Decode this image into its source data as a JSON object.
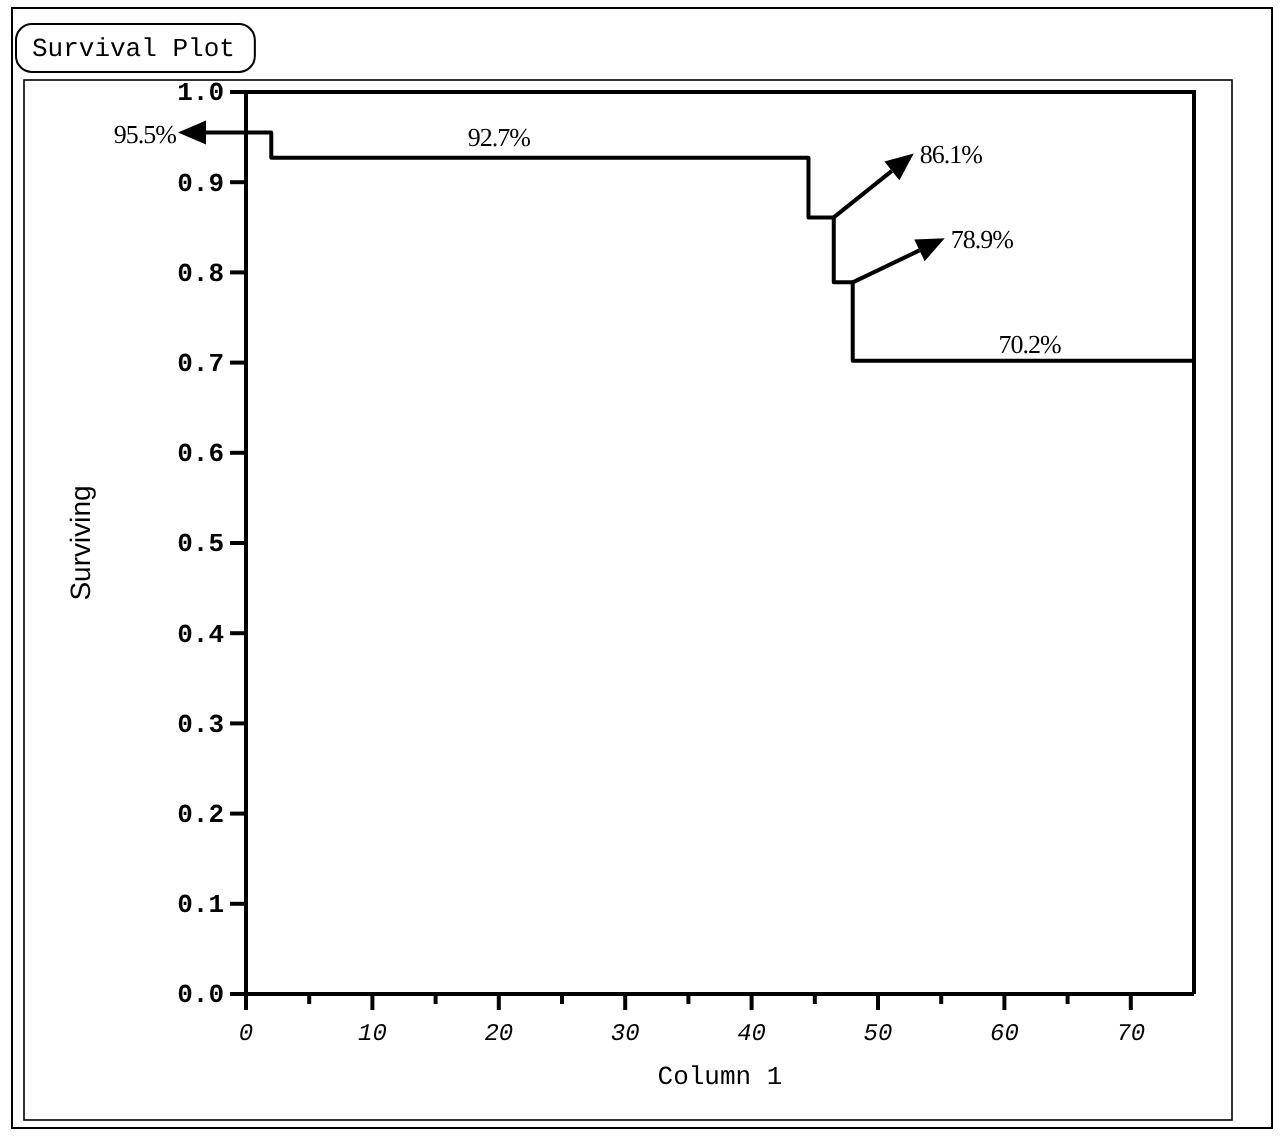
{
  "chart_data": {
    "type": "step",
    "title": "Survival Plot",
    "xlabel": "Column 1",
    "ylabel": "Surviving",
    "x": [
      0,
      2,
      44.5,
      46.5,
      48,
      75
    ],
    "values": [
      0.955,
      0.927,
      0.861,
      0.789,
      0.702,
      0.702
    ],
    "color": "#000000",
    "xlim": [
      0,
      75
    ],
    "xticks": [
      0,
      {
        "value": 5,
        "label": null
      },
      10,
      {
        "value": 15,
        "label": null
      },
      20,
      {
        "value": 25,
        "label": null
      },
      30,
      {
        "value": 35,
        "label": null
      },
      40,
      {
        "value": 45,
        "label": null
      },
      50,
      {
        "value": 55,
        "label": null
      },
      60,
      {
        "value": 65,
        "label": null
      },
      70
    ],
    "ylim": [
      0,
      1
    ],
    "yticks": [
      {
        "value": 0,
        "label": "0.0"
      },
      {
        "value": 0.1,
        "label": "0.1"
      },
      {
        "value": 0.2,
        "label": "0.2"
      },
      {
        "value": 0.3,
        "label": "0.3"
      },
      {
        "value": 0.4,
        "label": "0.4"
      },
      {
        "value": 0.5,
        "label": "0.5"
      },
      {
        "value": 0.6,
        "label": "0.6"
      },
      {
        "value": 0.7,
        "label": "0.7"
      },
      {
        "value": 0.8,
        "label": "0.8"
      },
      {
        "value": 0.9,
        "label": "0.9"
      },
      {
        "value": 1,
        "label": "1.0"
      }
    ],
    "annotations": [
      {
        "text": "95.5%",
        "x": 0,
        "y": 0.955
      },
      {
        "text": "92.7%",
        "x": 20,
        "y": 0.927
      },
      {
        "text": "86.1%",
        "x": 46.5,
        "y": 0.861
      },
      {
        "text": "78.9%",
        "x": 48,
        "y": 0.789
      },
      {
        "text": "70.2%",
        "x": 62,
        "y": 0.702
      }
    ],
    "grid": false
  }
}
